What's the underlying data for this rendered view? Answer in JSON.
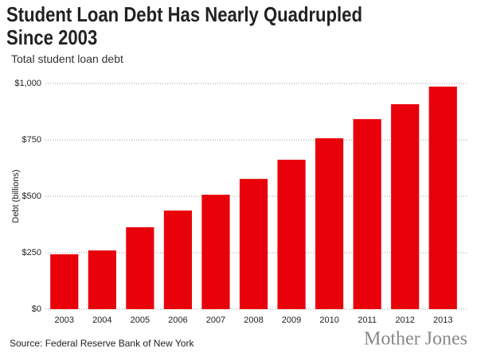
{
  "chart_data": {
    "type": "bar",
    "title": "Student Loan Debt Has Nearly Quadrupled Since 2003",
    "subtitle": "Total student loan debt",
    "y_label": "Debt (billions)",
    "source": "Source: Federal Reserve Bank of New York",
    "logo": "Mother Jones",
    "categories": [
      "2003",
      "2004",
      "2005",
      "2006",
      "2007",
      "2008",
      "2009",
      "2010",
      "2011",
      "2012",
      "2013"
    ],
    "values": [
      243,
      260,
      363,
      437,
      507,
      577,
      662,
      757,
      842,
      908,
      986
    ],
    "color": "#e8000b",
    "ylim": [
      0,
      1000
    ],
    "yticks": [
      {
        "value": 0,
        "label": "$0"
      },
      {
        "value": 250,
        "label": "$250"
      },
      {
        "value": 500,
        "label": "$500"
      },
      {
        "value": 750,
        "label": "$750"
      },
      {
        "value": 1000,
        "label": "$1,000"
      }
    ],
    "grid": true
  }
}
